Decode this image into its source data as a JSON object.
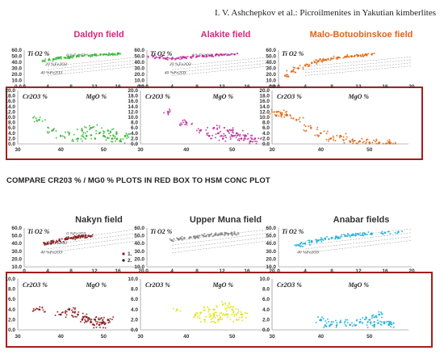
{
  "header": "I. V. Ashchepkov et al.: Picroilmenites in Yakutian kimberlites",
  "note": "COMPARE CR203 % / MG0 % PLOTS IN RED BOX TO HSM CONC PLOT",
  "colors": {
    "box": "#a81c1c",
    "title_pink": "#d4287a",
    "title_orange": "#e0641c",
    "title_dark": "#333333",
    "grid": "#dddddd",
    "trend": "#999999"
  },
  "top_x_ticks": [
    "0",
    "4",
    "8",
    "12",
    "16",
    "20"
  ],
  "bottom_x_ticks": [
    "30",
    "40",
    "50"
  ],
  "top_y_ticks_r1": [
    "60.0",
    "50.0",
    "40.0",
    "30.0",
    "20.0",
    "10.0",
    "0.0"
  ],
  "bottom_y_ticks_r1": [
    "20.0",
    "18.0",
    "16.0",
    "14.0",
    "12.0",
    "10.0",
    "8.0",
    "6.0",
    "4.0",
    "2.0",
    "0.0"
  ],
  "top_y_ticks_r2": [
    "60.0",
    "50.0",
    "40.0",
    "30.0",
    "20.0",
    "10.0"
  ],
  "bottom_y_ticks_r2": [
    "10.0",
    "8.0",
    "6.0",
    "4.0",
    "2.0",
    "0.0"
  ],
  "chart_data": [
    {
      "type": "scatter",
      "panel": "Daldyn field",
      "title": "Daldyn field",
      "color": "#3cb83c",
      "top": {
        "ylabel": "Ti O2 %",
        "annotations": [
          "0 %Fe2O3",
          "20 %Fe2O3",
          "40 %Fe2O3"
        ],
        "xlim": [
          0,
          20
        ],
        "ylim": [
          0,
          60
        ],
        "points": [
          [
            3.5,
            42
          ],
          [
            4.2,
            44
          ],
          [
            5,
            45
          ],
          [
            6,
            46.5
          ],
          [
            7,
            47.5
          ],
          [
            8,
            48.5
          ],
          [
            9,
            49.5
          ],
          [
            10,
            50.5
          ],
          [
            11,
            51
          ],
          [
            12,
            52
          ],
          [
            13,
            52.5
          ],
          [
            14,
            53
          ],
          [
            15,
            53.5
          ],
          [
            16,
            54
          ]
        ]
      },
      "bottom": {
        "ylabel": "Cr2O3 %",
        "xlabel": "MgO %",
        "xlim": [
          30,
          58
        ],
        "ylim": [
          0,
          20
        ],
        "points": [
          [
            35,
            9
          ],
          [
            38,
            5
          ],
          [
            40,
            3
          ],
          [
            42,
            4
          ],
          [
            44,
            2
          ],
          [
            45,
            5
          ],
          [
            46,
            3
          ],
          [
            47,
            6
          ],
          [
            48,
            2
          ],
          [
            49,
            4
          ],
          [
            50,
            3
          ],
          [
            51,
            5
          ],
          [
            52,
            2
          ],
          [
            53,
            4
          ],
          [
            54,
            1
          ],
          [
            55,
            3
          ]
        ]
      }
    },
    {
      "type": "scatter",
      "panel": "Alakite field",
      "title": "Alakite field",
      "color": "#c0329c",
      "top": {
        "ylabel": "Ti O2 %",
        "annotations": [
          "0 %Fe2O3",
          "20 %Fe2O3",
          "40 %Fe2O3"
        ],
        "xlim": [
          0,
          20
        ],
        "ylim": [
          0,
          60
        ],
        "points": [
          [
            1,
            50
          ],
          [
            2,
            48
          ],
          [
            3,
            46
          ],
          [
            4,
            46
          ],
          [
            5,
            47
          ],
          [
            6,
            48
          ],
          [
            7,
            48.5
          ],
          [
            8,
            49.5
          ],
          [
            9,
            50
          ],
          [
            10,
            51
          ],
          [
            11,
            51.5
          ],
          [
            12,
            52
          ],
          [
            13,
            52.5
          ],
          [
            14,
            53
          ]
        ]
      },
      "bottom": {
        "ylabel": "Cr2O3 %",
        "xlabel": "MgO %",
        "xlim": [
          30,
          58
        ],
        "ylim": [
          0,
          20
        ],
        "points": [
          [
            36,
            12
          ],
          [
            40,
            8
          ],
          [
            43,
            5
          ],
          [
            45,
            3
          ],
          [
            46,
            6
          ],
          [
            47,
            4
          ],
          [
            48,
            2
          ],
          [
            49,
            5
          ],
          [
            50,
            3
          ],
          [
            51,
            4
          ],
          [
            52,
            2
          ],
          [
            53,
            3
          ],
          [
            54,
            1
          ],
          [
            55,
            2
          ]
        ]
      }
    },
    {
      "type": "scatter",
      "panel": "Malo-Botuobinskoe field",
      "title": "Malo-Botuobinskoe field",
      "color": "#e06a18",
      "top": {
        "ylabel": "Ti O2 %",
        "annotations": [],
        "xlim": [
          0,
          20
        ],
        "ylim": [
          0,
          60
        ],
        "points": [
          [
            1,
            18
          ],
          [
            2,
            25
          ],
          [
            3,
            30
          ],
          [
            4,
            35
          ],
          [
            5,
            39
          ],
          [
            6,
            42
          ],
          [
            7,
            44
          ],
          [
            8,
            46
          ],
          [
            9,
            48
          ],
          [
            10,
            49
          ],
          [
            11,
            50
          ],
          [
            12,
            51
          ],
          [
            13,
            52
          ],
          [
            14,
            53
          ]
        ]
      },
      "bottom": {
        "ylabel": "Cr2O3 %",
        "xlabel": "MgO %",
        "xlim": [
          30,
          58
        ],
        "ylim": [
          0,
          20
        ],
        "points": [
          [
            31,
            12
          ],
          [
            32,
            11
          ],
          [
            33,
            11
          ],
          [
            35,
            9
          ],
          [
            38,
            6
          ],
          [
            40,
            4
          ],
          [
            42,
            2
          ],
          [
            44,
            3
          ],
          [
            46,
            1
          ],
          [
            48,
            1
          ],
          [
            50,
            0.5
          ],
          [
            52,
            0.5
          ],
          [
            54,
            0.5
          ]
        ]
      }
    },
    {
      "type": "scatter",
      "panel": "Nakyn field",
      "title": "Nakyn field",
      "color": "#8c1c1c",
      "legend": [
        "1.",
        "2."
      ],
      "top": {
        "ylabel": "Ti O2 %",
        "annotations": [
          "0 %Fe2O3",
          "20 %Fe2O3",
          "40 %Fe2O3"
        ],
        "xlim": [
          0,
          20
        ],
        "ylim": [
          10,
          60
        ],
        "points": [
          [
            4,
            40
          ],
          [
            5,
            42
          ],
          [
            6,
            44
          ],
          [
            7,
            46
          ],
          [
            8,
            47
          ],
          [
            9,
            48
          ],
          [
            10,
            49
          ],
          [
            11,
            50
          ]
        ]
      },
      "bottom": {
        "ylabel": "Cr2O3 %",
        "xlabel": "MgO %",
        "xlim": [
          30,
          58
        ],
        "ylim": [
          0,
          10
        ],
        "points": [
          [
            35,
            4
          ],
          [
            40,
            3
          ],
          [
            42,
            4
          ],
          [
            44,
            3
          ],
          [
            45,
            2
          ],
          [
            46,
            2.5
          ],
          [
            47,
            1.5
          ],
          [
            48,
            2
          ],
          [
            49,
            1
          ],
          [
            50,
            1.5
          ],
          [
            51,
            2
          ]
        ]
      }
    },
    {
      "type": "scatter",
      "panel": "Upper Muna field",
      "title": "Upper Muna field",
      "color": "#8a8a8a",
      "top": {
        "ylabel": "Ti O2 %",
        "annotations": [],
        "xlim": [
          0,
          20
        ],
        "ylim": [
          10,
          60
        ],
        "points": [
          [
            4,
            44
          ],
          [
            5,
            46
          ],
          [
            6,
            47
          ],
          [
            7,
            48
          ],
          [
            8,
            49
          ],
          [
            9,
            50
          ],
          [
            10,
            51
          ],
          [
            11,
            51.5
          ],
          [
            12,
            52
          ],
          [
            13,
            52.5
          ],
          [
            14,
            53
          ]
        ]
      },
      "bottom": {
        "ylabel": "Cr2O3 %",
        "xlabel": "MgO %",
        "xlim": [
          30,
          58
        ],
        "ylim": [
          0,
          10
        ],
        "points": [
          [
            38,
            4
          ],
          [
            42,
            3
          ],
          [
            44,
            2
          ],
          [
            45,
            4
          ],
          [
            46,
            3
          ],
          [
            47,
            2
          ],
          [
            48,
            5
          ],
          [
            49,
            3
          ],
          [
            50,
            4
          ],
          [
            51,
            2
          ],
          [
            52,
            3
          ]
        ]
      },
      "bottom_color": "#e3e31a"
    },
    {
      "type": "scatter",
      "panel": "Anabar fields",
      "title": "Anabar fields",
      "color": "#22b2d8",
      "top": {
        "ylabel": "Ti O2 %",
        "annotations": [
          "40 %Fe2O3"
        ],
        "xlim": [
          0,
          20
        ],
        "ylim": [
          10,
          60
        ],
        "points": [
          [
            3,
            38
          ],
          [
            4,
            40
          ],
          [
            5,
            42
          ],
          [
            6,
            44
          ],
          [
            7,
            46
          ],
          [
            8,
            47
          ],
          [
            9,
            48
          ],
          [
            10,
            50
          ],
          [
            11,
            51
          ],
          [
            12,
            52
          ],
          [
            13,
            52
          ],
          [
            14,
            53
          ],
          [
            16,
            54
          ],
          [
            18,
            55
          ]
        ]
      },
      "bottom": {
        "ylabel": "Cr2O3 %",
        "xlabel": "MgO %",
        "xlim": [
          30,
          58
        ],
        "ylim": [
          0,
          10
        ],
        "points": [
          [
            40,
            2
          ],
          [
            42,
            1
          ],
          [
            44,
            1.5
          ],
          [
            46,
            1
          ],
          [
            48,
            1.5
          ],
          [
            50,
            2
          ],
          [
            51,
            1
          ],
          [
            52,
            3
          ],
          [
            53,
            1.5
          ],
          [
            54,
            1
          ]
        ]
      }
    }
  ]
}
